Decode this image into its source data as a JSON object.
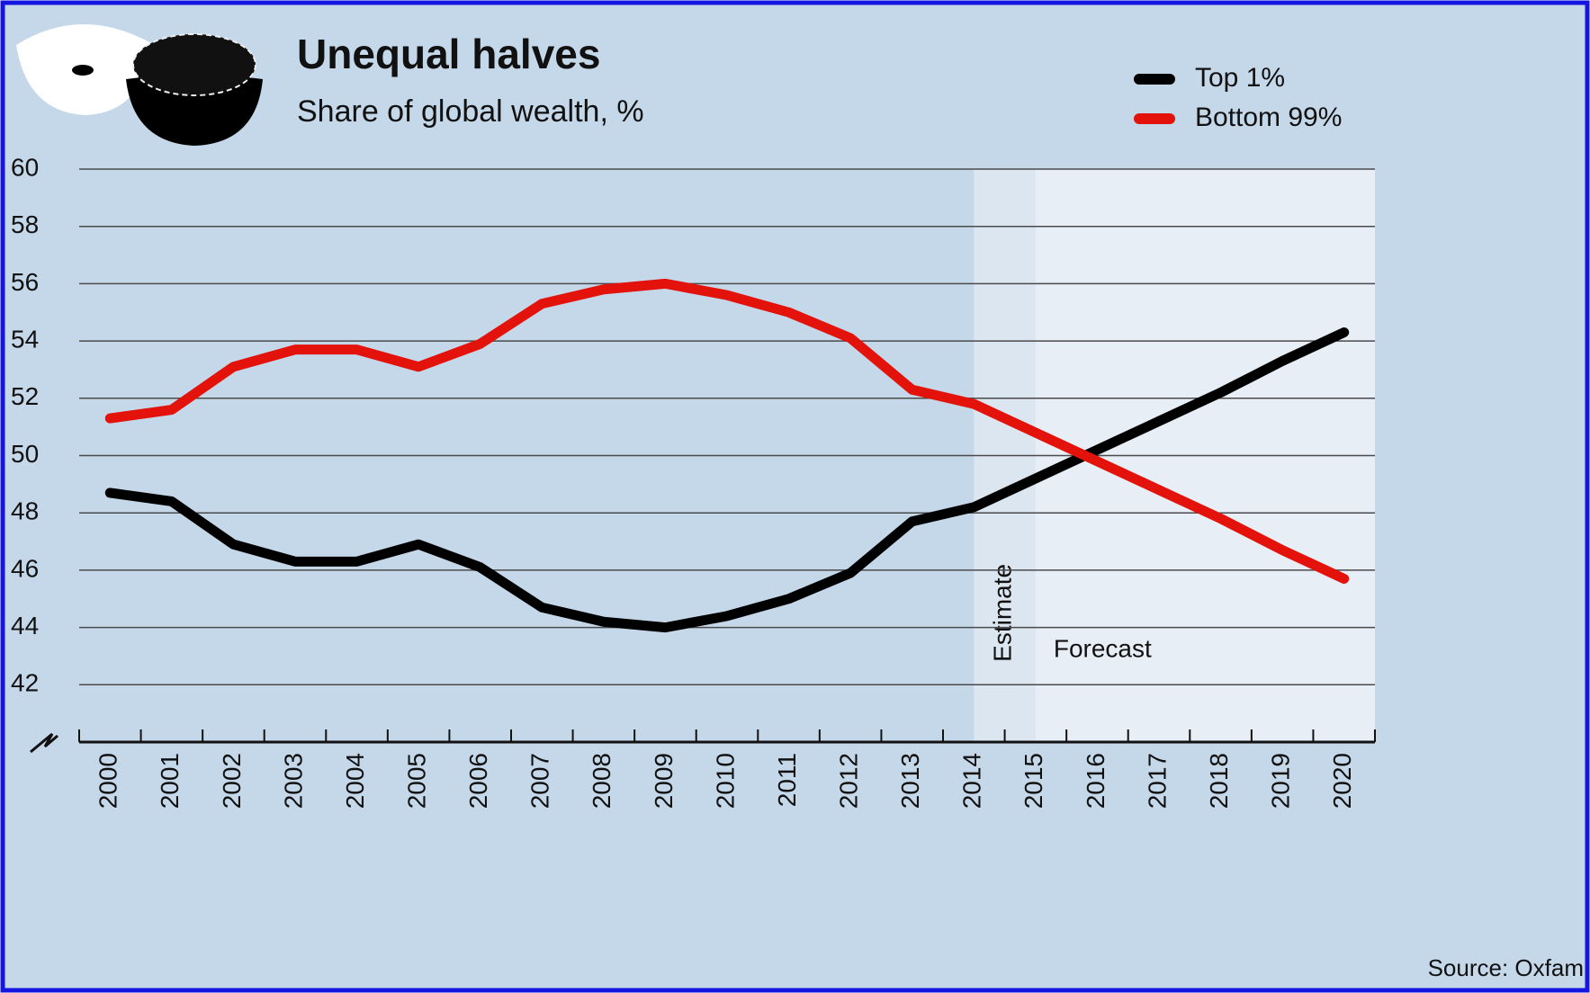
{
  "chart_data": {
    "type": "line",
    "title": "Unequal halves",
    "subtitle": "Share of global wealth, %",
    "source": "Source: Oxfam",
    "categories": [
      "2000",
      "2001",
      "2002",
      "2003",
      "2004",
      "2005",
      "2006",
      "2007",
      "2008",
      "2009",
      "2010",
      "2011",
      "2012",
      "2013",
      "2014",
      "2015",
      "2016",
      "2017",
      "2018",
      "2019",
      "2020"
    ],
    "series": [
      {
        "name": "Top 1%",
        "color": "#000000",
        "values": [
          48.7,
          48.4,
          46.9,
          46.3,
          46.3,
          46.9,
          46.1,
          44.7,
          44.2,
          44.0,
          44.4,
          45.0,
          45.9,
          47.7,
          48.2,
          49.2,
          50.2,
          51.2,
          52.2,
          53.3,
          54.3
        ]
      },
      {
        "name": "Bottom 99%",
        "color": "#e3120b",
        "values": [
          51.3,
          51.6,
          53.1,
          53.7,
          53.7,
          53.1,
          53.9,
          55.3,
          55.8,
          56.0,
          55.6,
          55.0,
          54.1,
          52.3,
          51.8,
          50.8,
          49.8,
          48.8,
          47.8,
          46.7,
          45.7
        ]
      }
    ],
    "regions": [
      {
        "label": "Estimate",
        "start": "2014",
        "color": "#dce6f1"
      },
      {
        "label": "Forecast",
        "start": "2015",
        "color": "#e8eef6"
      }
    ],
    "ylim": [
      40,
      60
    ],
    "yticks": [
      42,
      44,
      46,
      48,
      50,
      52,
      54,
      56,
      58,
      60
    ],
    "grid": true,
    "legend": "top-right"
  }
}
